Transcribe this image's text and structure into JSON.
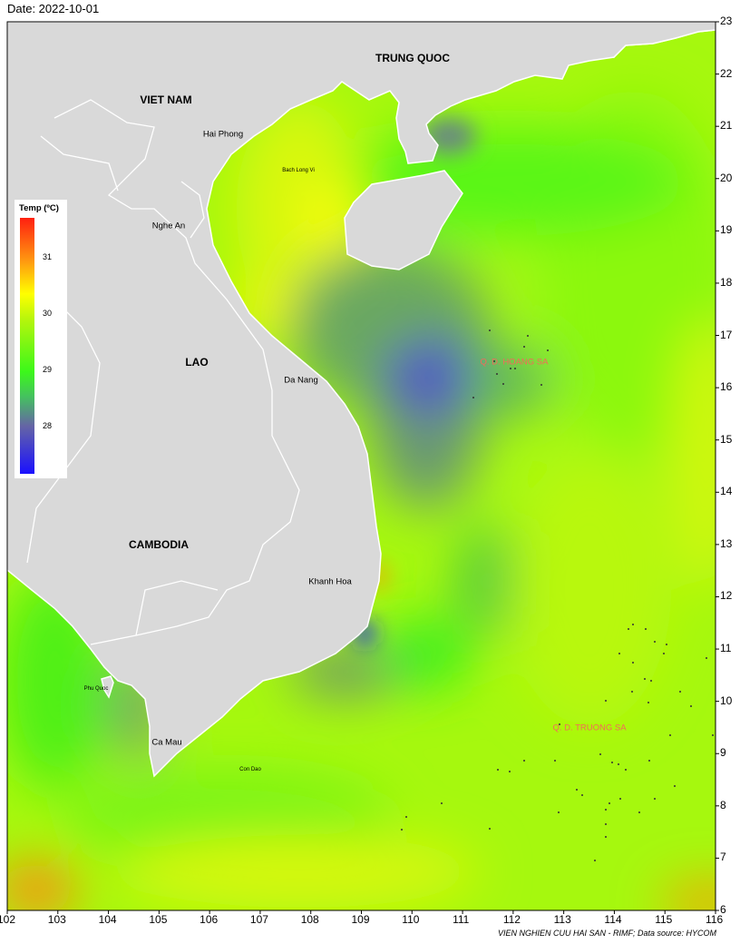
{
  "date_label": "Date: 2022-10-01",
  "credit": "VIEN NGHIEN CUU HAI SAN - RIMF; Data source: HYCOM",
  "axes": {
    "x_ticks": [
      "102",
      "103",
      "104",
      "105",
      "106",
      "107",
      "108",
      "109",
      "110",
      "111",
      "112",
      "113",
      "114",
      "115",
      "116"
    ],
    "y_ticks": [
      "6",
      "7",
      "8",
      "9",
      "10",
      "11",
      "12",
      "13",
      "14",
      "15",
      "16",
      "17",
      "18",
      "19",
      "20",
      "21",
      "22",
      "23"
    ],
    "lon_range": [
      102,
      116
    ],
    "lat_range": [
      6,
      23
    ]
  },
  "legend": {
    "title": "Temp (ºC)",
    "ticks": [
      "31",
      "30",
      "29",
      "28"
    ],
    "range": [
      27.15,
      31.7
    ],
    "colors": [
      "#1a10ff",
      "#6565a5",
      "#3cf81a",
      "#ffff00",
      "#ff9a10",
      "#ff2010"
    ]
  },
  "labels": {
    "countries": {
      "vietnam": "VIET NAM",
      "china": "TRUNG QUOC",
      "laos": "LAO",
      "cambodia": "CAMBODIA"
    },
    "provinces": {
      "hai_phong": "Hai Phong",
      "nghe_an": "Nghe An",
      "da_nang": "Da Nang",
      "khanh_hoa": "Khanh Hoa",
      "ca_mau": "Ca Mau"
    },
    "islands": {
      "bach_long_vi": "Bach Long Vi",
      "phu_quoc": "Phu Quoc",
      "con_dao": "Con Dao"
    },
    "archipelagos": {
      "hoang_sa": "Q. D. HOANG SA",
      "truong_sa": "Q. D. TRUONG SA"
    }
  },
  "colors": {
    "land": "#d9d9d9",
    "coast": "#ffffff",
    "archipelago_label": "#f36a5a"
  }
}
